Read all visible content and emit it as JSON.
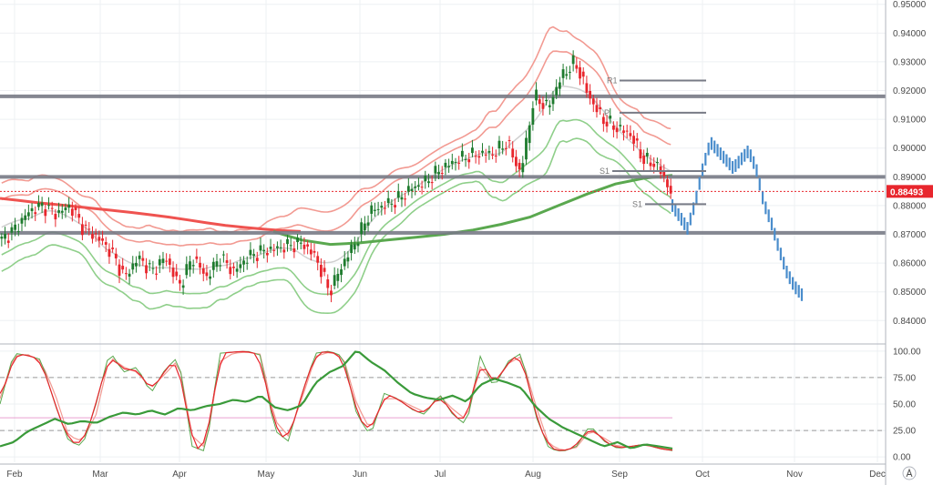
{
  "colors": {
    "up": "#1e7b2e",
    "down": "#e8262d",
    "sma_red": "#ef5350",
    "sma_green": "#5aa84f",
    "bb_red": "#f29a92",
    "bb_green": "#8fcf8a",
    "mid_gray": "#d0d0d0",
    "level": "#787b86",
    "projection": "#4a8dcc",
    "stoch_k": "#e8262d",
    "stoch_d": "#f29a92",
    "rsi": "#3a9a3a",
    "current_price": "#e8262d"
  },
  "chart_data": [
    {
      "type": "candlestick",
      "title": "",
      "x_ticks": [
        "Feb",
        "Mar",
        "Apr",
        "May",
        "Jun",
        "Jul",
        "Aug",
        "Sep",
        "Oct",
        "Nov",
        "Dec"
      ],
      "y_ticks": [
        "0.84000",
        "0.85000",
        "0.86000",
        "0.87000",
        "0.88000",
        "0.89000",
        "0.90000",
        "0.91000",
        "0.92000",
        "0.93000",
        "0.94000",
        "0.95000"
      ],
      "ylim": [
        0.8325,
        0.9515
      ],
      "current_price": "0.88493",
      "horizontal_levels": [
        0.918,
        0.89,
        0.8705
      ],
      "pivot_points": [
        {
          "label": "R1",
          "value": 0.9235
        },
        {
          "label": "P",
          "value": 0.9123
        },
        {
          "label": "S1",
          "value": 0.892
        },
        {
          "label": "S1",
          "value": 0.8805
        }
      ],
      "series": [
        {
          "name": "Close",
          "values": [
            0.868,
            0.872,
            0.878,
            0.88,
            0.877,
            0.88,
            0.872,
            0.869,
            0.864,
            0.855,
            0.862,
            0.857,
            0.862,
            0.852,
            0.862,
            0.855,
            0.862,
            0.857,
            0.862,
            0.864,
            0.865,
            0.866,
            0.867,
            0.862,
            0.85,
            0.86,
            0.868,
            0.878,
            0.88,
            0.882,
            0.886,
            0.888,
            0.892,
            0.895,
            0.897,
            0.898,
            0.898,
            0.902,
            0.891,
            0.918,
            0.914,
            0.925,
            0.93,
            0.918,
            0.91,
            0.907,
            0.905,
            0.896,
            0.894,
            0.885
          ]
        },
        {
          "name": "SMA red",
          "values": [
            0.8825,
            0.8818,
            0.881,
            0.8804,
            0.8797,
            0.879,
            0.8783,
            0.8776,
            0.8768,
            0.876,
            0.875,
            0.874,
            0.8731,
            0.8724,
            0.8718,
            0.8713,
            0.871
          ]
        },
        {
          "name": "SMA green",
          "values": [
            0.871,
            0.868,
            0.8665,
            0.867,
            0.868,
            0.869,
            0.87,
            0.8715,
            0.8735,
            0.876,
            0.88,
            0.884,
            0.8875,
            0.8895,
            0.8905
          ]
        },
        {
          "name": "Projection",
          "values": [
            0.88,
            0.876,
            0.872,
            0.881,
            0.893,
            0.902,
            0.899,
            0.896,
            0.893,
            0.896,
            0.899,
            0.893,
            0.881,
            0.874,
            0.865,
            0.857,
            0.852,
            0.849
          ]
        }
      ]
    },
    {
      "type": "line",
      "title": "",
      "y_ticks": [
        "0.00",
        "25.00",
        "50.00",
        "75.00",
        "100.00"
      ],
      "ylim": [
        -5,
        105
      ],
      "levels": [
        75,
        25
      ],
      "midline": 37,
      "series": [
        {
          "name": "Stoch %K",
          "values": [
            50,
            98,
            96,
            92,
            50,
            15,
            10,
            50,
            100,
            80,
            85,
            60,
            82,
            95,
            10,
            5,
            98,
            99,
            100,
            96,
            25,
            15,
            60,
            98,
            100,
            95,
            40,
            20,
            60,
            55,
            45,
            40,
            60,
            40,
            30,
            95,
            65,
            90,
            98,
            40,
            8,
            5,
            10,
            30,
            15,
            8,
            10,
            12,
            8,
            6
          ]
        },
        {
          "name": "Stoch %D",
          "values": [
            55,
            95,
            97,
            90,
            60,
            20,
            15,
            40,
            95,
            85,
            80,
            65,
            78,
            92,
            20,
            8,
            90,
            98,
            99,
            97,
            35,
            20,
            55,
            95,
            99,
            95,
            50,
            25,
            55,
            55,
            48,
            42,
            58,
            45,
            35,
            85,
            70,
            88,
            95,
            50,
            12,
            6,
            9,
            25,
            18,
            10,
            10,
            12,
            9,
            7
          ]
        },
        {
          "name": "RSI",
          "values": [
            10,
            14,
            24,
            30,
            36,
            31,
            34,
            32,
            38,
            42,
            40,
            44,
            40,
            46,
            44,
            48,
            50,
            54,
            52,
            58,
            47,
            44,
            49,
            70,
            80,
            86,
            101,
            90,
            82,
            70,
            60,
            56,
            54,
            58,
            52,
            68,
            74,
            70,
            65,
            48,
            36,
            28,
            22,
            16,
            10,
            14,
            8,
            12,
            10,
            8
          ]
        }
      ]
    }
  ]
}
